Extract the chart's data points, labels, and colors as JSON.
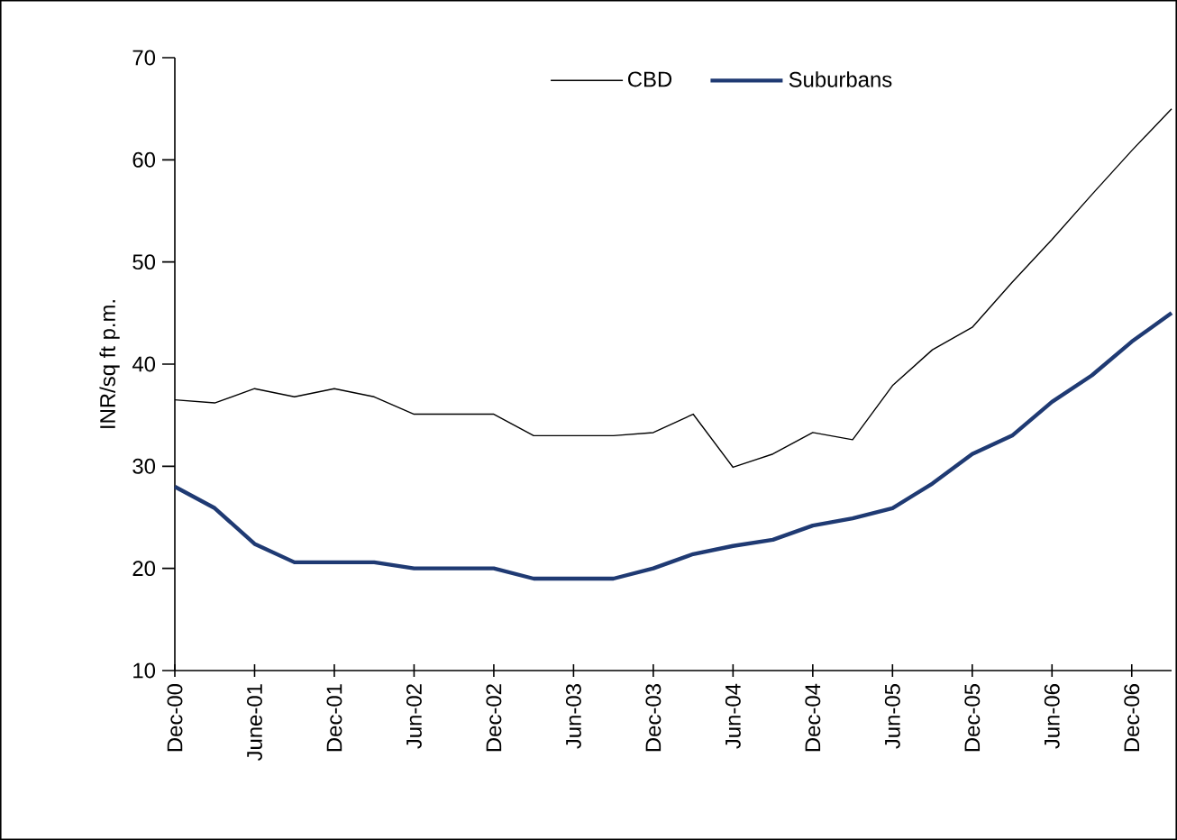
{
  "chart_data": {
    "type": "line",
    "ylabel": "INR/sq ft p.m.",
    "categories": [
      "Dec-00",
      null,
      "June-01",
      null,
      "Dec-01",
      null,
      "Jun-02",
      null,
      "Dec-02",
      null,
      "Jun-03",
      null,
      "Dec-03",
      null,
      "Jun-04",
      null,
      "Dec-04",
      null,
      "Jun-05",
      null,
      "Dec-05",
      null,
      "Jun-06",
      null,
      "Dec-06",
      null
    ],
    "series": [
      {
        "name": "CBD",
        "color": "#000000",
        "values": [
          36.5,
          36.2,
          37.6,
          36.8,
          37.6,
          36.8,
          35.1,
          35.1,
          35.1,
          33,
          33,
          33,
          33.3,
          35.1,
          29.9,
          31.2,
          33.3,
          32.6,
          37.9,
          41.4,
          43.6,
          48,
          52.2,
          56.6,
          60.9,
          65
        ]
      },
      {
        "name": "Suburbans",
        "color": "#1f3a73",
        "values": [
          28,
          25.9,
          22.4,
          20.6,
          20.6,
          20.6,
          20,
          20,
          20,
          19,
          19,
          19,
          20,
          21.4,
          22.2,
          22.8,
          24.2,
          24.9,
          25.9,
          28.3,
          31.2,
          33,
          36.3,
          38.9,
          42.2,
          45
        ]
      }
    ],
    "ylim": [
      10,
      70
    ],
    "yticks": [
      10,
      20,
      30,
      40,
      50,
      60,
      70
    ],
    "legend": "top",
    "grid": false,
    "marker": "none",
    "line_style": "solid"
  }
}
